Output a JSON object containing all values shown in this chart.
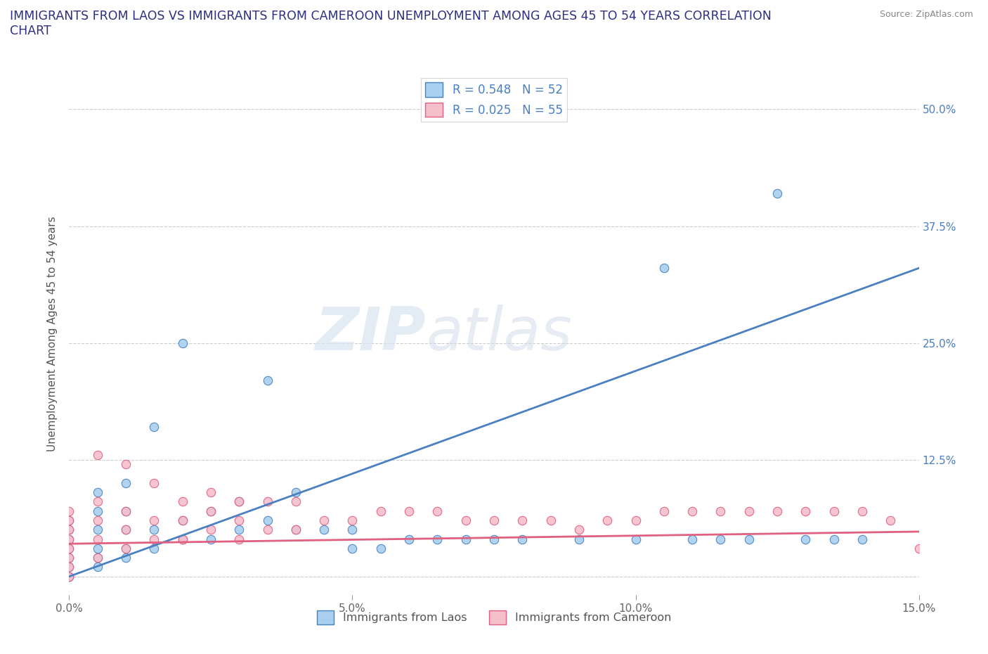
{
  "title": "IMMIGRANTS FROM LAOS VS IMMIGRANTS FROM CAMEROON UNEMPLOYMENT AMONG AGES 45 TO 54 YEARS CORRELATION\nCHART",
  "source": "Source: ZipAtlas.com",
  "xlabel": "",
  "ylabel": "Unemployment Among Ages 45 to 54 years",
  "xlim": [
    0.0,
    0.15
  ],
  "ylim": [
    -0.02,
    0.54
  ],
  "xticks": [
    0.0,
    0.05,
    0.1,
    0.15
  ],
  "xticklabels": [
    "0.0%",
    "5.0%",
    "10.0%",
    "15.0%"
  ],
  "yticks": [
    0.0,
    0.125,
    0.25,
    0.375,
    0.5
  ],
  "yticklabels_right": [
    "",
    "12.5%",
    "25.0%",
    "37.5%",
    "50.0%"
  ],
  "laos_color": "#A8D0EE",
  "cameroon_color": "#F5BFCC",
  "laos_line_color": "#4A7FC1",
  "cameroon_line_color": "#E06080",
  "laos_R": 0.548,
  "laos_N": 52,
  "cameroon_R": 0.025,
  "cameroon_N": 55,
  "watermark_text": "ZIP",
  "watermark_text2": "atlas",
  "background_color": "#ffffff",
  "grid_color": "#cccccc",
  "laos_x": [
    0.0,
    0.0,
    0.0,
    0.0,
    0.0,
    0.0,
    0.0,
    0.0,
    0.005,
    0.005,
    0.005,
    0.005,
    0.005,
    0.005,
    0.01,
    0.01,
    0.01,
    0.01,
    0.01,
    0.015,
    0.015,
    0.015,
    0.02,
    0.02,
    0.02,
    0.025,
    0.025,
    0.03,
    0.03,
    0.035,
    0.035,
    0.04,
    0.04,
    0.045,
    0.05,
    0.05,
    0.055,
    0.06,
    0.065,
    0.07,
    0.075,
    0.08,
    0.09,
    0.1,
    0.105,
    0.11,
    0.115,
    0.12,
    0.125,
    0.13,
    0.135,
    0.14
  ],
  "laos_y": [
    0.0,
    0.01,
    0.02,
    0.03,
    0.04,
    0.05,
    0.06,
    0.0,
    0.01,
    0.02,
    0.03,
    0.05,
    0.07,
    0.09,
    0.02,
    0.03,
    0.05,
    0.07,
    0.1,
    0.03,
    0.05,
    0.16,
    0.04,
    0.06,
    0.25,
    0.04,
    0.07,
    0.05,
    0.08,
    0.06,
    0.21,
    0.05,
    0.09,
    0.05,
    0.03,
    0.05,
    0.03,
    0.04,
    0.04,
    0.04,
    0.04,
    0.04,
    0.04,
    0.04,
    0.33,
    0.04,
    0.04,
    0.04,
    0.41,
    0.04,
    0.04,
    0.04
  ],
  "cameroon_x": [
    0.0,
    0.0,
    0.0,
    0.0,
    0.0,
    0.0,
    0.0,
    0.0,
    0.005,
    0.005,
    0.005,
    0.005,
    0.005,
    0.01,
    0.01,
    0.01,
    0.01,
    0.015,
    0.015,
    0.015,
    0.02,
    0.02,
    0.02,
    0.025,
    0.025,
    0.025,
    0.03,
    0.03,
    0.03,
    0.035,
    0.035,
    0.04,
    0.04,
    0.045,
    0.05,
    0.055,
    0.06,
    0.065,
    0.07,
    0.075,
    0.08,
    0.085,
    0.09,
    0.095,
    0.1,
    0.105,
    0.11,
    0.115,
    0.12,
    0.125,
    0.13,
    0.135,
    0.14,
    0.145,
    0.15
  ],
  "cameroon_y": [
    0.01,
    0.02,
    0.03,
    0.04,
    0.05,
    0.06,
    0.07,
    0.0,
    0.02,
    0.04,
    0.06,
    0.08,
    0.13,
    0.03,
    0.05,
    0.07,
    0.12,
    0.04,
    0.06,
    0.1,
    0.04,
    0.06,
    0.08,
    0.05,
    0.07,
    0.09,
    0.04,
    0.06,
    0.08,
    0.05,
    0.08,
    0.05,
    0.08,
    0.06,
    0.06,
    0.07,
    0.07,
    0.07,
    0.06,
    0.06,
    0.06,
    0.06,
    0.05,
    0.06,
    0.06,
    0.07,
    0.07,
    0.07,
    0.07,
    0.07,
    0.07,
    0.07,
    0.07,
    0.06,
    0.03
  ]
}
